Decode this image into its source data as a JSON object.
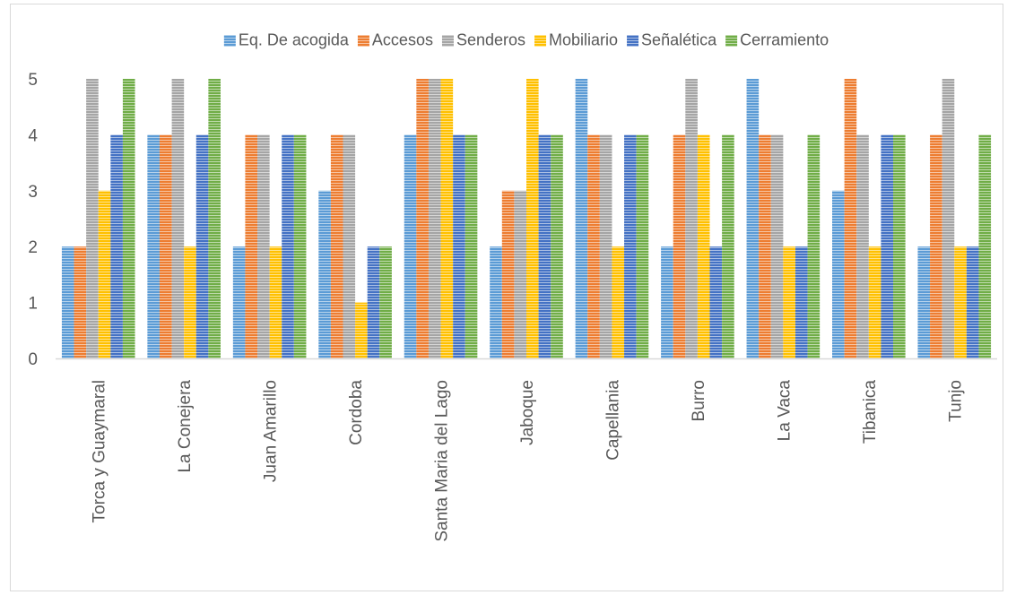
{
  "chart_data": {
    "type": "bar",
    "title": "",
    "xlabel": "",
    "ylabel": "",
    "ylim": [
      0,
      5
    ],
    "yticks": [
      0,
      1,
      2,
      3,
      4,
      5
    ],
    "grid": false,
    "legend_position": "top",
    "categories": [
      "Torca y Guaymaral",
      "La Conejera",
      "Juan Amarillo",
      "Cordoba",
      "Santa Maria del Lago",
      "Jaboque",
      "Capellania",
      "Burro",
      "La Vaca",
      "Tibanica",
      "Tunjo"
    ],
    "series": [
      {
        "name": "Eq. De acogida",
        "color": "#5B9BD5",
        "values": [
          2,
          4,
          2,
          3,
          4,
          2,
          5,
          2,
          5,
          3,
          2
        ]
      },
      {
        "name": "Accesos",
        "color": "#ED7D31",
        "values": [
          2,
          4,
          4,
          4,
          5,
          3,
          4,
          4,
          4,
          5,
          4
        ]
      },
      {
        "name": "Senderos",
        "color": "#A5A5A5",
        "values": [
          5,
          5,
          4,
          4,
          5,
          3,
          4,
          5,
          4,
          4,
          5
        ]
      },
      {
        "name": "Mobiliario",
        "color": "#FFC000",
        "values": [
          3,
          2,
          2,
          1,
          5,
          5,
          2,
          4,
          2,
          2,
          2
        ]
      },
      {
        "name": "Señalética",
        "color": "#4472C4",
        "values": [
          4,
          4,
          4,
          2,
          4,
          4,
          4,
          2,
          2,
          4,
          2
        ]
      },
      {
        "name": "Cerramiento",
        "color": "#70AD47",
        "values": [
          5,
          5,
          4,
          2,
          4,
          4,
          4,
          4,
          4,
          4,
          4
        ]
      }
    ]
  }
}
